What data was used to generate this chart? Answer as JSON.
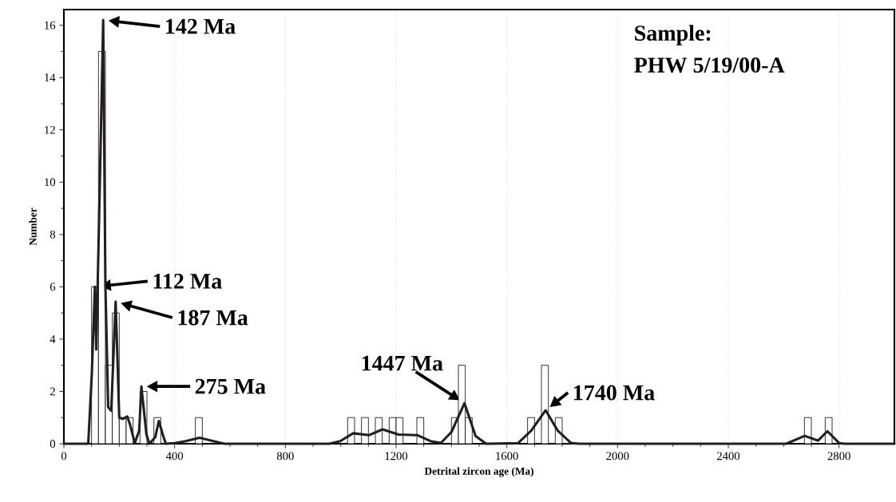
{
  "chart_data": {
    "type": "histogram",
    "xlabel": "Detrital zircon age (Ma)",
    "ylabel": "Number",
    "bins": [
      100,
      125,
      150,
      175,
      200,
      225,
      250,
      275,
      300,
      325,
      350,
      375,
      400,
      425,
      450,
      475,
      500,
      525,
      550,
      575,
      600,
      625,
      650,
      675,
      700,
      725,
      750,
      775,
      800,
      825,
      850,
      875,
      900,
      925,
      950,
      975,
      1000,
      1025,
      1050,
      1075,
      1100,
      1125,
      1150,
      1175,
      1200,
      1225,
      1250,
      1275,
      1300,
      1325,
      1350,
      1375,
      1400,
      1425,
      1450,
      1475,
      1500,
      1525,
      1550,
      1575,
      1600,
      1625,
      1650,
      1675,
      1700,
      1725,
      1750,
      1775,
      1800,
      1825,
      1850,
      1875,
      1900,
      1925,
      1950,
      1975,
      2000,
      2025,
      2050,
      2075,
      2100,
      2125,
      2150,
      2175,
      2200,
      2225,
      2250,
      2275,
      2300,
      2325,
      2350,
      2375,
      2400,
      2425,
      2450,
      2475,
      2500,
      2525,
      2550,
      2575,
      2600,
      2625,
      2650,
      2675,
      2700,
      2725,
      2750,
      2775
    ],
    "values": [
      6,
      15,
      3,
      5,
      1,
      1,
      0,
      2,
      0,
      1,
      0,
      0,
      0,
      0,
      0,
      1,
      0,
      0,
      0,
      0,
      0,
      0,
      0,
      0,
      0,
      0,
      0,
      0,
      0,
      0,
      0,
      0,
      0,
      0,
      0,
      0,
      0,
      1,
      0,
      1,
      0,
      1,
      0,
      1,
      1,
      0,
      0,
      1,
      0,
      0,
      0,
      0,
      1,
      3,
      1,
      0,
      0,
      0,
      0,
      0,
      0,
      0,
      0,
      1,
      0,
      3,
      0,
      1,
      0,
      0,
      0,
      0,
      0,
      0,
      0,
      0,
      0,
      0,
      0,
      0,
      0,
      0,
      0,
      0,
      0,
      0,
      0,
      0,
      0,
      0,
      0,
      0,
      0,
      0,
      0,
      0,
      0,
      0,
      0,
      0,
      0,
      0,
      0,
      1,
      0,
      0,
      1
    ],
    "color": "#ffffff",
    "series": [
      {
        "type": "line",
        "color": "#231f20",
        "x": [
          0,
          88,
          101,
          112,
          117,
          130,
          142,
          150,
          160,
          171,
          187,
          200,
          213,
          229,
          240,
          256,
          272,
          280,
          298,
          309,
          330,
          343,
          357,
          368,
          400,
          440,
          490,
          540,
          580,
          959,
          998,
          1045,
          1103,
          1151,
          1209,
          1276,
          1324,
          1362,
          1400,
          1447,
          1487,
          1525,
          1640,
          1688,
          1740,
          1784,
          1832,
          1861,
          2609,
          2676,
          2724,
          2758,
          2801,
          2820,
          3000
        ],
        "values": [
          0,
          0,
          2.7,
          6,
          3.6,
          10,
          16.2,
          6,
          1.4,
          1.26,
          5.43,
          1,
          0.95,
          1.04,
          0.7,
          0.02,
          0.5,
          2.19,
          0.36,
          0,
          0.25,
          0.87,
          0.36,
          0,
          0.02,
          0.1,
          0.23,
          0.1,
          0,
          0,
          0.1,
          0.4,
          0.33,
          0.55,
          0.35,
          0.33,
          0.1,
          0.03,
          0.45,
          1.55,
          0.3,
          0,
          0.02,
          0.5,
          1.28,
          0.5,
          0.03,
          0,
          0,
          0.3,
          0.12,
          0.48,
          0.02,
          0,
          0
        ]
      }
    ],
    "xlim": [
      0,
      3000
    ],
    "ylim": [
      0,
      16.6
    ],
    "xticks": [
      0,
      400,
      800,
      1200,
      1600,
      2000,
      2400,
      2800
    ],
    "yticks": [
      0,
      2,
      4,
      6,
      8,
      10,
      12,
      14,
      16
    ],
    "grid": "x",
    "annotations": [
      {
        "text": "142 Ma",
        "x": 142,
        "y": 16.2
      },
      {
        "text": "112 Ma",
        "x": 112,
        "y": 6
      },
      {
        "text": "187 Ma",
        "x": 187,
        "y": 5.43
      },
      {
        "text": "275 Ma",
        "x": 280,
        "y": 2.19
      },
      {
        "text": "1447 Ma",
        "x": 1447,
        "y": 1.55
      },
      {
        "text": "1740 Ma",
        "x": 1740,
        "y": 1.28
      },
      "Sample:",
      "PHW 5/19/00-A"
    ]
  }
}
